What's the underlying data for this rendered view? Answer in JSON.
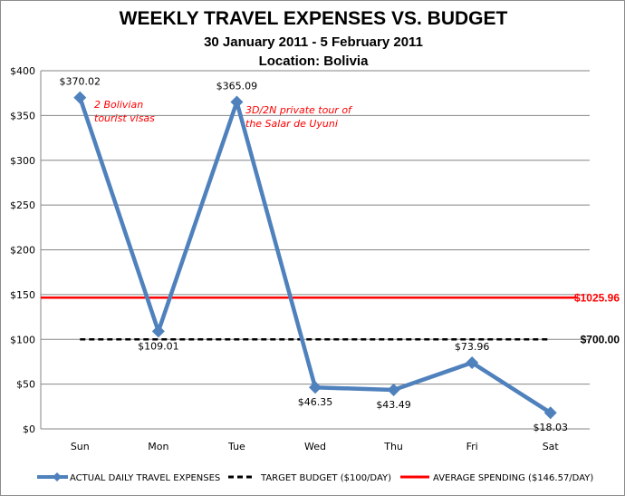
{
  "chart_data": {
    "type": "line",
    "title": "WEEKLY TRAVEL EXPENSES VS. BUDGET",
    "subtitle": "30 January 2011 - 5 February 2011",
    "subtitle2": "Location: Bolivia",
    "categories": [
      "Sun",
      "Mon",
      "Tue",
      "Wed",
      "Thu",
      "Fri",
      "Sat"
    ],
    "ylim": [
      0,
      400
    ],
    "yticks": [
      "$0",
      "$50",
      "$100",
      "$150",
      "$200",
      "$250",
      "$300",
      "$350",
      "$400"
    ],
    "grid": true,
    "legend_position": "bottom",
    "series": [
      {
        "name": "ACTUAL DAILY TRAVEL EXPENSES",
        "values": [
          370.02,
          109.01,
          365.09,
          46.35,
          43.49,
          73.96,
          18.03
        ],
        "labels": [
          "$370.02",
          "$109.01",
          "$365.09",
          "$46.35",
          "$43.49",
          "$73.96",
          "$18.03"
        ],
        "color": "#4f81bd"
      },
      {
        "name": "TARGET BUDGET ($100/DAY)",
        "value": 100,
        "end_label": "$700.00",
        "color": "#000000",
        "style": "dashed"
      },
      {
        "name": "AVERAGE SPENDING ($146.57/DAY)",
        "value": 146.57,
        "end_label": "$1025.96",
        "color": "#ff0000"
      }
    ],
    "annotations": [
      {
        "text": [
          "2 Bolivian",
          "tourist visas"
        ],
        "category": "Sun"
      },
      {
        "text": [
          "3D/2N private tour of",
          "the Salar de Uyuni"
        ],
        "category": "Tue"
      }
    ]
  }
}
